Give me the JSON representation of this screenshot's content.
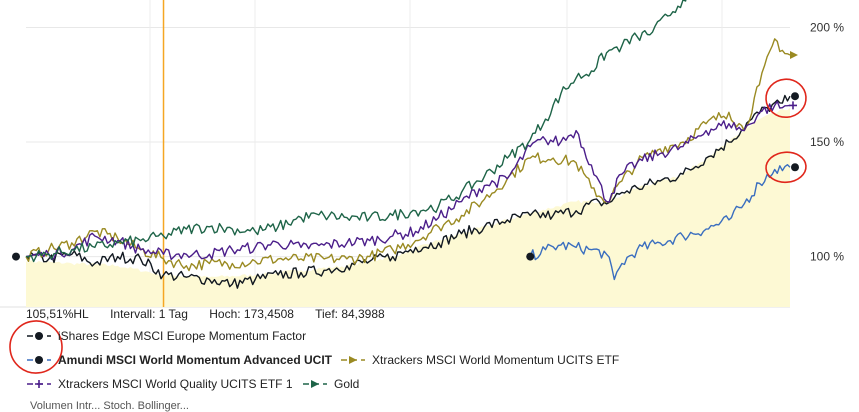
{
  "chart_data": {
    "type": "line",
    "title": "",
    "xlabel": "",
    "ylabel": "",
    "y_unit": "%",
    "y_ticks": [
      100,
      150,
      200
    ],
    "y_tick_labels": [
      "100 %",
      "150 %",
      "200 %"
    ],
    "ylim": [
      78,
      212
    ],
    "x_index_range": [
      0,
      100
    ],
    "grid": true,
    "vertical_marker_index": 18,
    "series": [
      {
        "name": "iShares Edge MSCI Europe Momentum Factor",
        "color": "#111820",
        "marker": "dot",
        "points": [
          [
            0,
            100
          ],
          [
            3,
            99
          ],
          [
            6,
            101
          ],
          [
            9,
            97
          ],
          [
            12,
            100
          ],
          [
            15,
            99
          ],
          [
            18,
            92
          ],
          [
            21,
            91
          ],
          [
            24,
            90
          ],
          [
            27,
            88
          ],
          [
            30,
            90
          ],
          [
            33,
            92
          ],
          [
            36,
            93
          ],
          [
            39,
            94
          ],
          [
            42,
            96
          ],
          [
            45,
            98
          ],
          [
            48,
            100
          ],
          [
            51,
            104
          ],
          [
            54,
            106
          ],
          [
            57,
            110
          ],
          [
            60,
            113
          ],
          [
            63,
            116
          ],
          [
            66,
            118
          ],
          [
            69,
            118
          ],
          [
            72,
            120
          ],
          [
            75,
            124
          ],
          [
            76,
            123
          ],
          [
            78,
            128
          ],
          [
            80,
            130
          ],
          [
            83,
            133
          ],
          [
            86,
            136
          ],
          [
            89,
            143
          ],
          [
            92,
            150
          ],
          [
            95,
            160
          ],
          [
            97,
            165
          ],
          [
            99,
            167
          ],
          [
            100,
            170
          ]
        ]
      },
      {
        "name": "Amundi MSCI World Momentum Advanced UCIT",
        "color": "#3a6ebf",
        "marker": "dot",
        "points": [
          [
            66,
            100
          ],
          [
            68,
            103
          ],
          [
            70,
            105
          ],
          [
            72,
            104
          ],
          [
            74,
            103
          ],
          [
            76,
            101
          ],
          [
            77,
            90
          ],
          [
            78,
            97
          ],
          [
            80,
            103
          ],
          [
            83,
            106
          ],
          [
            86,
            109
          ],
          [
            89,
            112
          ],
          [
            92,
            116
          ],
          [
            94,
            123
          ],
          [
            96,
            132
          ],
          [
            98,
            138
          ],
          [
            100,
            139
          ]
        ]
      },
      {
        "name": "Xtrackers MSCI World Momentum UCITS ETF",
        "color": "#9a8a22",
        "marker": "arrow",
        "points": [
          [
            0,
            100
          ],
          [
            3,
            103
          ],
          [
            6,
            106
          ],
          [
            9,
            111
          ],
          [
            12,
            108
          ],
          [
            15,
            103
          ],
          [
            18,
            99
          ],
          [
            21,
            96
          ],
          [
            24,
            97
          ],
          [
            27,
            97
          ],
          [
            30,
            98
          ],
          [
            33,
            99
          ],
          [
            36,
            99
          ],
          [
            39,
            99
          ],
          [
            42,
            99
          ],
          [
            45,
            100
          ],
          [
            48,
            103
          ],
          [
            51,
            107
          ],
          [
            54,
            113
          ],
          [
            57,
            118
          ],
          [
            60,
            125
          ],
          [
            63,
            134
          ],
          [
            66,
            143
          ],
          [
            69,
            143
          ],
          [
            72,
            141
          ],
          [
            74,
            130
          ],
          [
            76,
            124
          ],
          [
            78,
            133
          ],
          [
            80,
            141
          ],
          [
            83,
            147
          ],
          [
            86,
            150
          ],
          [
            89,
            158
          ],
          [
            92,
            163
          ],
          [
            94,
            155
          ],
          [
            96,
            175
          ],
          [
            98,
            195
          ],
          [
            99,
            190
          ],
          [
            100,
            188
          ]
        ]
      },
      {
        "name": "Xtrackers MSCI World Quality UCITS ETF 1",
        "color": "#4b1e8a",
        "marker": "plus",
        "points": [
          [
            0,
            100
          ],
          [
            3,
            101
          ],
          [
            6,
            103
          ],
          [
            9,
            109
          ],
          [
            12,
            107
          ],
          [
            15,
            103
          ],
          [
            18,
            101
          ],
          [
            21,
            101
          ],
          [
            24,
            101
          ],
          [
            27,
            103
          ],
          [
            30,
            104
          ],
          [
            33,
            106
          ],
          [
            36,
            104
          ],
          [
            39,
            105
          ],
          [
            42,
            106
          ],
          [
            45,
            107
          ],
          [
            48,
            109
          ],
          [
            51,
            111
          ],
          [
            54,
            117
          ],
          [
            57,
            124
          ],
          [
            60,
            131
          ],
          [
            63,
            134
          ],
          [
            66,
            148
          ],
          [
            68,
            151
          ],
          [
            70,
            150
          ],
          [
            72,
            155
          ],
          [
            74,
            140
          ],
          [
            76,
            124
          ],
          [
            78,
            136
          ],
          [
            80,
            141
          ],
          [
            83,
            145
          ],
          [
            86,
            148
          ],
          [
            89,
            155
          ],
          [
            92,
            158
          ],
          [
            94,
            155
          ],
          [
            96,
            163
          ],
          [
            98,
            166
          ],
          [
            99,
            165
          ],
          [
            100,
            166
          ]
        ]
      },
      {
        "name": "Gold",
        "color": "#1e6448",
        "marker": "arrow",
        "points": [
          [
            0,
            100
          ],
          [
            3,
            101
          ],
          [
            6,
            103
          ],
          [
            9,
            104
          ],
          [
            12,
            106
          ],
          [
            15,
            107
          ],
          [
            18,
            109
          ],
          [
            21,
            112
          ],
          [
            24,
            113
          ],
          [
            27,
            112
          ],
          [
            30,
            111
          ],
          [
            33,
            113
          ],
          [
            36,
            117
          ],
          [
            39,
            118
          ],
          [
            42,
            117
          ],
          [
            45,
            117
          ],
          [
            48,
            118
          ],
          [
            51,
            120
          ],
          [
            54,
            122
          ],
          [
            57,
            128
          ],
          [
            60,
            135
          ],
          [
            63,
            143
          ],
          [
            66,
            151
          ],
          [
            68,
            160
          ],
          [
            70,
            171
          ],
          [
            72,
            178
          ],
          [
            74,
            181
          ],
          [
            76,
            189
          ],
          [
            78,
            192
          ],
          [
            80,
            196
          ],
          [
            82,
            198
          ],
          [
            84,
            205
          ],
          [
            86,
            212
          ],
          [
            87,
            218
          ]
        ]
      }
    ],
    "fill_area": {
      "color": "#fdf9d4",
      "points": [
        [
          0,
          98
        ],
        [
          6,
          97
        ],
        [
          12,
          96
        ],
        [
          18,
          92
        ],
        [
          24,
          91
        ],
        [
          30,
          92
        ],
        [
          36,
          94
        ],
        [
          42,
          96
        ],
        [
          48,
          100
        ],
        [
          54,
          107
        ],
        [
          60,
          113
        ],
        [
          66,
          119
        ],
        [
          72,
          124
        ],
        [
          76,
          124
        ],
        [
          80,
          130
        ],
        [
          86,
          136
        ],
        [
          92,
          150
        ],
        [
          96,
          160
        ],
        [
          100,
          165
        ]
      ]
    }
  },
  "info_bar": {
    "hl": "105,51%HL",
    "interval": "Intervall: 1 Tag",
    "high": "Hoch: 173,4508",
    "low": "Tief: 84,3988"
  },
  "legend": [
    {
      "label": "iShares Edge MSCI Europe Momentum Factor",
      "bold": false
    },
    {
      "label": "Amundi MSCI World Momentum Advanced UCIT",
      "bold": true
    },
    {
      "label": "Xtrackers MSCI World Momentum UCITS ETF",
      "bold": false
    },
    {
      "label": "Xtrackers MSCI World Quality UCITS ETF 1",
      "bold": false
    },
    {
      "label": "Gold",
      "bold": false
    }
  ],
  "annotation_color": "#e0271c",
  "footer": "Volumen  Intr... Stoch.  Bollinger..."
}
